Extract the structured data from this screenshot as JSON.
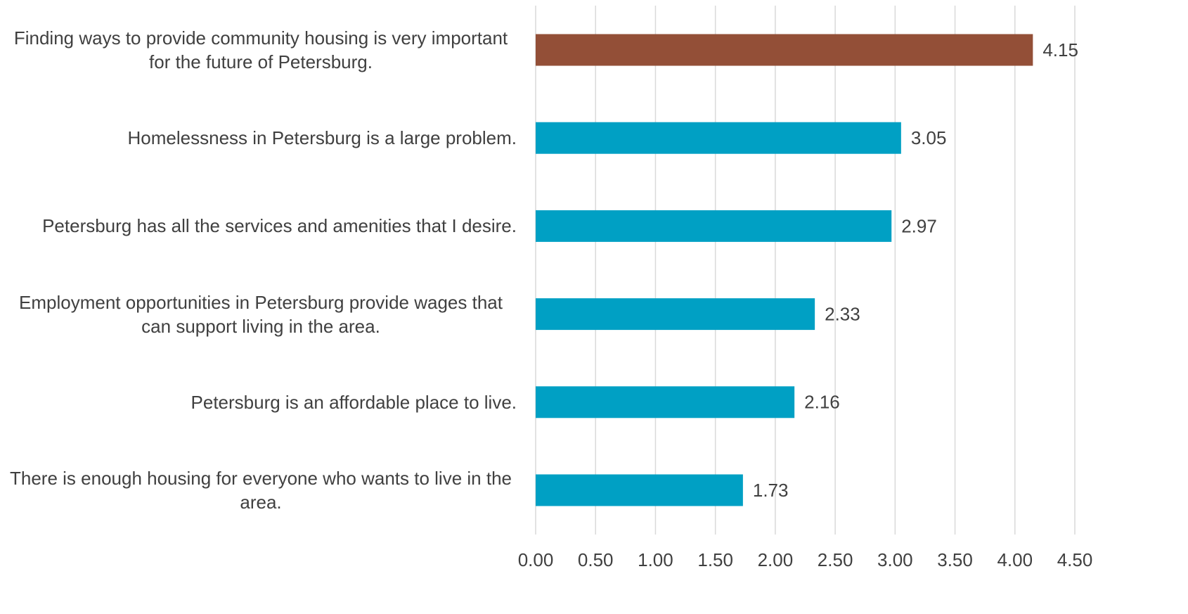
{
  "chart_data": {
    "type": "barh",
    "categories": [
      "Finding ways to provide community housing is very important for the future of Petersburg.",
      "Homelessness in Petersburg is a large problem.",
      "Petersburg has all the services and amenities that I desire.",
      "Employment opportunities in Petersburg provide wages that can support living in the area.",
      "Petersburg is an affordable place to live.",
      "There is enough housing for everyone who wants to live in the area."
    ],
    "values": [
      4.15,
      3.05,
      2.97,
      2.33,
      2.16,
      1.73
    ],
    "colors": [
      "#934f37",
      "#00a0c4",
      "#00a0c4",
      "#00a0c4",
      "#00a0c4",
      "#00a0c4"
    ],
    "xlim": [
      0,
      4.5
    ],
    "xticks": [
      {
        "value": 0,
        "label": "0.00"
      },
      {
        "value": 0.5,
        "label": "0.50"
      },
      {
        "value": 1,
        "label": "1.00"
      },
      {
        "value": 1.5,
        "label": "1.50"
      },
      {
        "value": 2,
        "label": "2.00"
      },
      {
        "value": 2.5,
        "label": "2.50"
      },
      {
        "value": 3,
        "label": "3.00"
      },
      {
        "value": 3.5,
        "label": "3.50"
      },
      {
        "value": 4,
        "label": "4.00"
      },
      {
        "value": 4.5,
        "label": "4.50"
      }
    ],
    "grid": true
  }
}
